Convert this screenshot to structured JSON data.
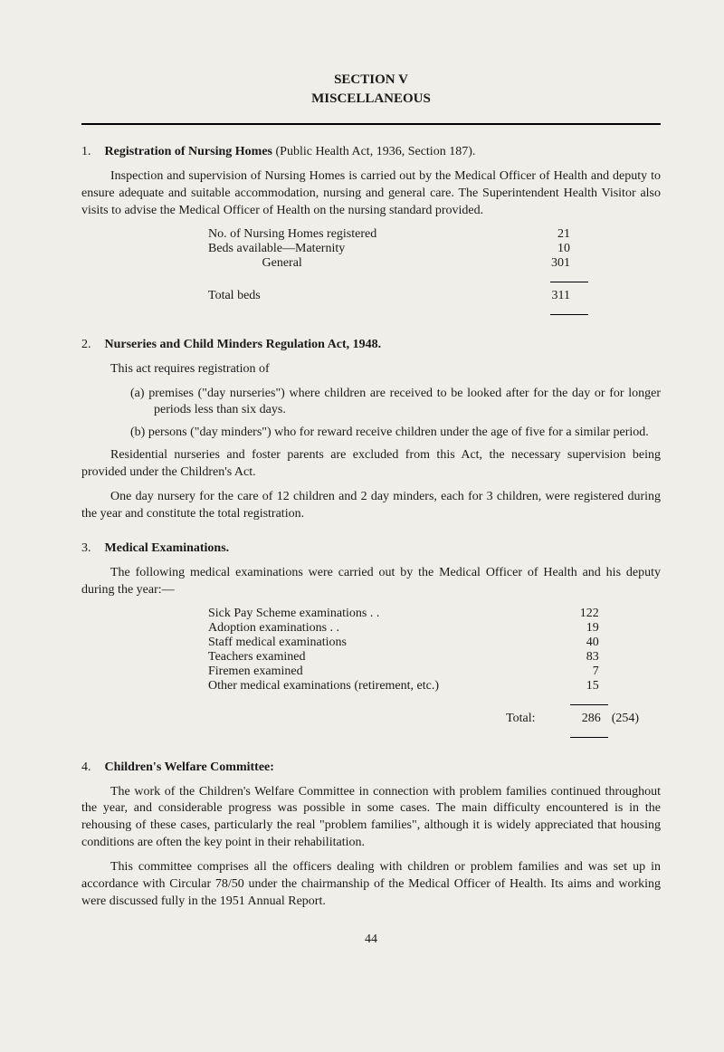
{
  "header": {
    "section": "SECTION V",
    "title": "MISCELLANEOUS"
  },
  "item1": {
    "num": "1.",
    "heading": "Registration of Nursing Homes",
    "heading_suffix": " (Public Health Act, 1936, Section 187).",
    "para1": "Inspection and supervision of Nursing Homes is carried out by the Medical Officer of Health and deputy to ensure adequate and suitable accommodation, nursing and general care. The Superintendent Health Visitor also visits to advise the Medical Officer of Health on the nursing standard provided.",
    "stats": [
      {
        "label": "No. of Nursing Homes registered",
        "value": "21"
      },
      {
        "label": "Beds available—Maternity",
        "value": "10"
      },
      {
        "label": "                 General",
        "value": "301"
      }
    ],
    "total_label": "Total beds",
    "total_value": "311"
  },
  "item2": {
    "num": "2.",
    "heading": "Nurseries and Child Minders Regulation Act, 1948.",
    "para1": "This act requires registration of",
    "sub_a": "(a) premises (\"day nurseries\") where children are received to be looked after for the day or for longer periods less than six days.",
    "sub_b": "(b) persons (\"day minders\") who for reward receive children under the age of five for a similar period.",
    "para2": "Residential nurseries and foster parents are excluded from this Act, the necessary supervision being provided under the Children's Act.",
    "para3": "One day nursery for the care of 12 children and 2 day minders, each for 3 children, were registered during the year and constitute the total registration."
  },
  "item3": {
    "num": "3.",
    "heading": "Medical Examinations.",
    "para1": "The following medical examinations were carried out by the Medical Officer of Health and his deputy during the year:—",
    "stats": [
      {
        "label": "Sick Pay Scheme examinations  . .",
        "value": "122"
      },
      {
        "label": "Adoption examinations . .",
        "value": "19"
      },
      {
        "label": "Staff medical examinations",
        "value": "40"
      },
      {
        "label": "Teachers examined",
        "value": "83"
      },
      {
        "label": "Firemen examined",
        "value": "7"
      },
      {
        "label": "Other medical examinations (retirement, etc.)",
        "value": "15"
      }
    ],
    "total_label": "Total:",
    "total_value": "286",
    "total_paren": "(254)"
  },
  "item4": {
    "num": "4.",
    "heading": "Children's Welfare Committee:",
    "para1": "The work of the Children's Welfare Committee in connection with problem families continued throughout the year, and considerable progress was possible in some cases. The main difficulty encountered is in the rehousing of these cases, particularly the real \"problem families\", although it is widely appreciated that housing conditions are often the key point in their rehabilitation.",
    "para2": "This committee comprises all the officers dealing with children or problem families and was set up in accordance with Circular 78/50 under the chairmanship of the Medical Officer of Health. Its aims and working were discussed fully in the 1951 Annual Report."
  },
  "page_number": "44"
}
